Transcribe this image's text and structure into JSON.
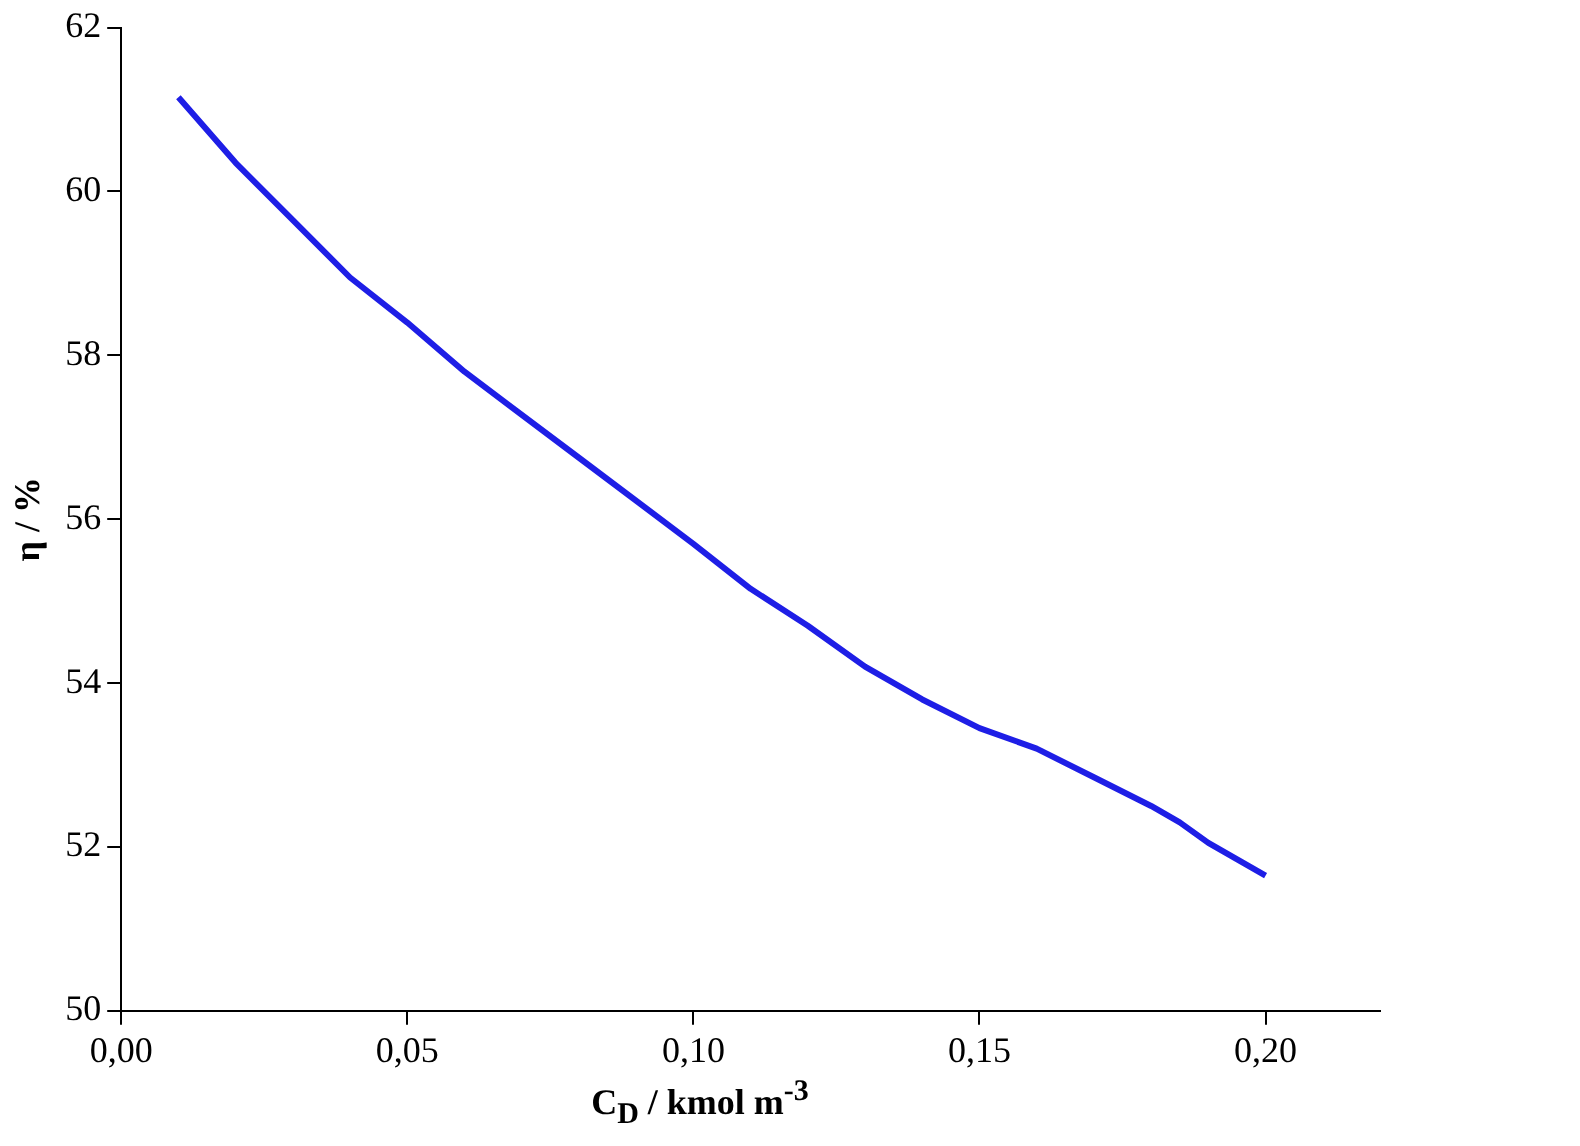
{
  "chart_data": {
    "type": "line",
    "xlabel": "C$_{D}$ / kmol m$^{-3}$",
    "ylabel": "η / %",
    "x": [
      0.01,
      0.02,
      0.03,
      0.04,
      0.05,
      0.06,
      0.08,
      0.1,
      0.11,
      0.12,
      0.13,
      0.14,
      0.15,
      0.16,
      0.17,
      0.18,
      0.185,
      0.19,
      0.2
    ],
    "series": [
      {
        "color": "#1e1ee6",
        "values": [
          61.15,
          60.35,
          59.65,
          58.95,
          58.4,
          57.8,
          56.75,
          55.7,
          55.15,
          54.7,
          54.2,
          53.8,
          53.45,
          53.2,
          52.85,
          52.5,
          52.3,
          52.05,
          51.65
        ]
      }
    ],
    "xlim": [
      0,
      0.22
    ],
    "ylim": [
      50,
      62
    ],
    "xticks": [
      {
        "value": 0,
        "label": "0,00"
      },
      {
        "value": 0.05,
        "label": "0,05"
      },
      {
        "value": 0.1,
        "label": "0,10"
      },
      {
        "value": 0.15,
        "label": "0,15"
      },
      {
        "value": 0.2,
        "label": "0,20"
      }
    ],
    "yticks": [
      50,
      52,
      54,
      56,
      58,
      60,
      62
    ],
    "grid": false,
    "legend": false,
    "marker": "none",
    "line_style": "solid"
  }
}
